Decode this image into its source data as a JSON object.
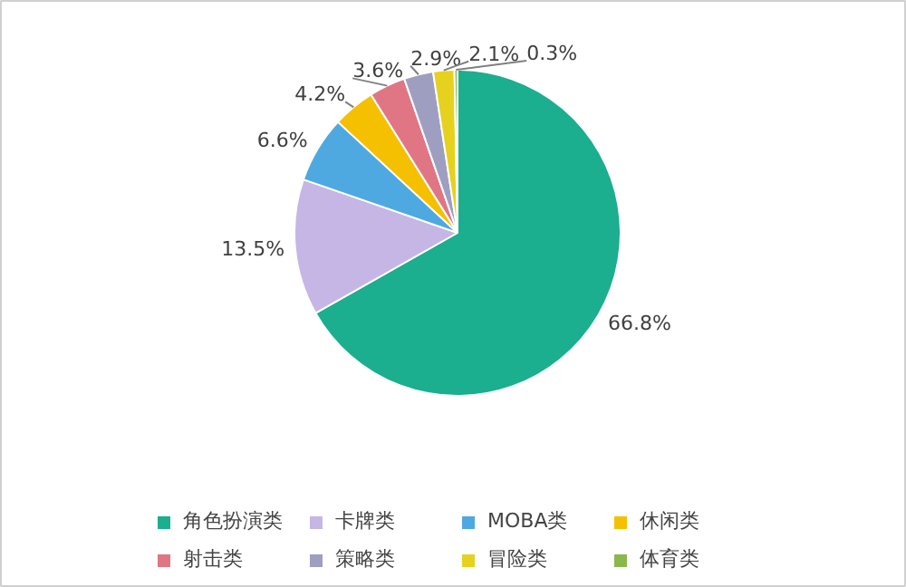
{
  "chart_data": {
    "type": "pie",
    "categories": [
      "角色扮演类",
      "卡牌类",
      "MOBA类",
      "休闲类",
      "射击类",
      "策略类",
      "冒险类",
      "体育类"
    ],
    "values": [
      66.8,
      13.5,
      6.6,
      4.2,
      3.6,
      2.9,
      2.1,
      0.3
    ],
    "colors": [
      "#1bae8f",
      "#c6b6e6",
      "#4ea9e1",
      "#f5c000",
      "#e07684",
      "#9e9fc0",
      "#e6d11e",
      "#8bb84a"
    ],
    "value_labels": [
      "66.8%",
      "13.5%",
      "6.6%",
      "4.2%",
      "3.6%",
      "2.9%",
      "2.1%",
      "0.3%"
    ],
    "legend": "bottom"
  }
}
